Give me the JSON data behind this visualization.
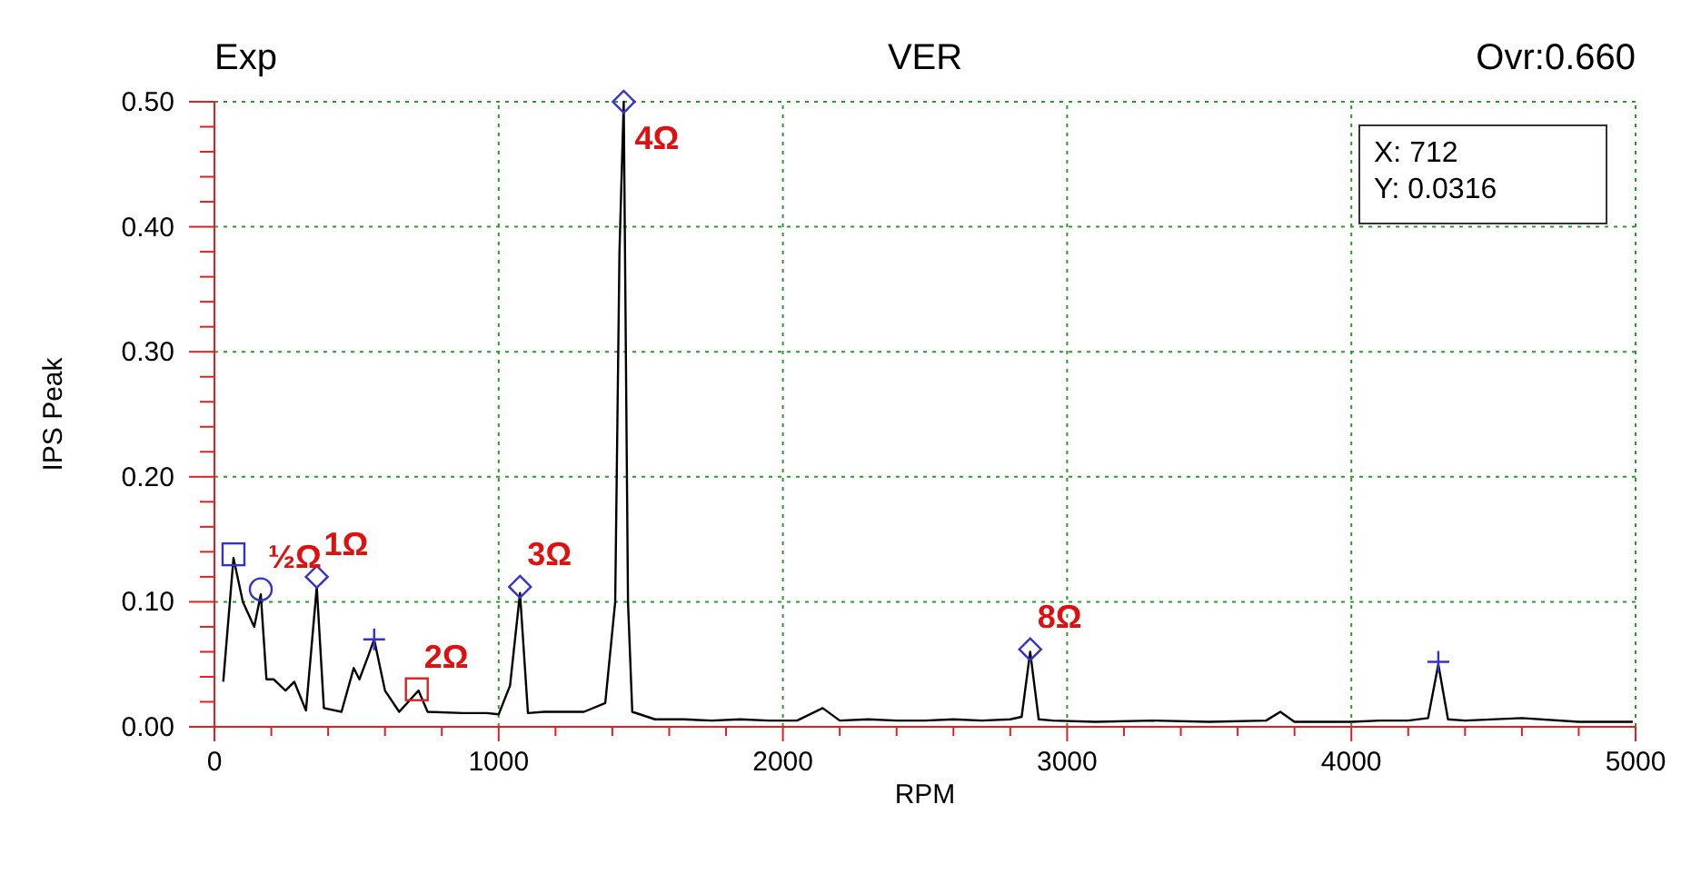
{
  "chart_data": {
    "type": "line",
    "title": "VER",
    "xlabel": "RPM",
    "ylabel": "IPS Peak",
    "xlim": [
      0,
      5000
    ],
    "ylim": [
      0,
      0.5
    ],
    "xticks": [
      0,
      {
        "value": 200,
        "label": null
      },
      {
        "value": 400,
        "label": null
      },
      {
        "value": 600,
        "label": null
      },
      {
        "value": 800,
        "label": null
      },
      1000,
      {
        "value": 1200,
        "label": null
      },
      {
        "value": 1400,
        "label": null
      },
      {
        "value": 1600,
        "label": null
      },
      {
        "value": 1800,
        "label": null
      },
      2000,
      {
        "value": 2200,
        "label": null
      },
      {
        "value": 2400,
        "label": null
      },
      {
        "value": 2600,
        "label": null
      },
      {
        "value": 2800,
        "label": null
      },
      3000,
      {
        "value": 3200,
        "label": null
      },
      {
        "value": 3400,
        "label": null
      },
      {
        "value": 3600,
        "label": null
      },
      {
        "value": 3800,
        "label": null
      },
      4000,
      {
        "value": 4200,
        "label": null
      },
      {
        "value": 4400,
        "label": null
      },
      {
        "value": 4600,
        "label": null
      },
      {
        "value": 4800,
        "label": null
      },
      5000
    ],
    "yticks": [
      {
        "value": 0,
        "label": "0.00"
      },
      {
        "value": 0.02,
        "label": null
      },
      {
        "value": 0.04,
        "label": null
      },
      {
        "value": 0.06,
        "label": null
      },
      {
        "value": 0.08,
        "label": null
      },
      {
        "value": 0.1,
        "label": "0.10"
      },
      {
        "value": 0.12,
        "label": null
      },
      {
        "value": 0.14,
        "label": null
      },
      {
        "value": 0.16,
        "label": null
      },
      {
        "value": 0.18,
        "label": null
      },
      {
        "value": 0.2,
        "label": "0.20"
      },
      {
        "value": 0.22,
        "label": null
      },
      {
        "value": 0.24,
        "label": null
      },
      {
        "value": 0.26,
        "label": null
      },
      {
        "value": 0.28,
        "label": null
      },
      {
        "value": 0.3,
        "label": "0.30"
      },
      {
        "value": 0.32,
        "label": null
      },
      {
        "value": 0.34,
        "label": null
      },
      {
        "value": 0.36,
        "label": null
      },
      {
        "value": 0.38,
        "label": null
      },
      {
        "value": 0.4,
        "label": "0.40"
      },
      {
        "value": 0.42,
        "label": null
      },
      {
        "value": 0.44,
        "label": null
      },
      {
        "value": 0.46,
        "label": null
      },
      {
        "value": 0.48,
        "label": null
      },
      {
        "value": 0.5,
        "label": "0.50"
      }
    ],
    "grid": true,
    "series": [
      {
        "color": "#000000",
        "marker": "none",
        "x": [
          31,
          67,
          100,
          140,
          163,
          183,
          208,
          250,
          281,
          322,
          360,
          385,
          447,
          490,
          510,
          540,
          562,
          600,
          650,
          718,
          750,
          875,
          958,
          1000,
          1040,
          1075,
          1103,
          1160,
          1228,
          1300,
          1375,
          1410,
          1425,
          1440,
          1455,
          1470,
          1550,
          1650,
          1750,
          1850,
          1950,
          2050,
          2140,
          2200,
          2300,
          2400,
          2500,
          2600,
          2700,
          2800,
          2840,
          2870,
          2900,
          2950,
          3100,
          3300,
          3500,
          3700,
          3750,
          3800,
          4000,
          4100,
          4200,
          4270,
          4306,
          4340,
          4400,
          4600,
          4800,
          4990
        ],
        "values": [
          0.036,
          0.135,
          0.1,
          0.08,
          0.106,
          0.038,
          0.038,
          0.029,
          0.036,
          0.013,
          0.112,
          0.015,
          0.012,
          0.047,
          0.038,
          0.056,
          0.07,
          0.029,
          0.012,
          0.029,
          0.012,
          0.011,
          0.011,
          0.01,
          0.033,
          0.107,
          0.011,
          0.012,
          0.012,
          0.012,
          0.019,
          0.1,
          0.38,
          0.5,
          0.1,
          0.012,
          0.006,
          0.006,
          0.005,
          0.006,
          0.005,
          0.005,
          0.015,
          0.005,
          0.006,
          0.005,
          0.005,
          0.006,
          0.005,
          0.006,
          0.008,
          0.06,
          0.006,
          0.005,
          0.004,
          0.005,
          0.004,
          0.005,
          0.012,
          0.004,
          0.004,
          0.005,
          0.005,
          0.007,
          0.05,
          0.006,
          0.005,
          0.007,
          0.004,
          0.004
        ]
      },
      {
        "type": "scatter",
        "color": "#3333cc",
        "marker": "diamond",
        "x": [
          360,
          1075,
          1440,
          2870
        ],
        "values": [
          0.12,
          0.112,
          0.5,
          0.062
        ]
      },
      {
        "type": "scatter",
        "color": "#3333cc",
        "marker": "square",
        "x": [
          67
        ],
        "values": [
          0.138
        ]
      },
      {
        "type": "scatter",
        "color": "#3333cc",
        "marker": "circle",
        "x": [
          163
        ],
        "values": [
          0.11
        ]
      },
      {
        "type": "scatter",
        "color": "#3333cc",
        "marker": "cross",
        "x": [
          562,
          4306
        ],
        "values": [
          0.07,
          0.052
        ]
      },
      {
        "type": "scatter",
        "color": "#e02020",
        "marker": "square",
        "x": [
          712
        ],
        "values": [
          0.03
        ]
      }
    ],
    "annotations": [
      "Exp",
      "Ovr:0.660",
      "X: 712",
      "Y: 0.0316",
      {
        "text": "½Ω",
        "x": 163,
        "y": 0.11
      },
      {
        "text": "1Ω",
        "x": 360,
        "y": 0.12
      },
      {
        "text": "2Ω",
        "x": 712,
        "y": 0.03
      },
      {
        "text": "3Ω",
        "x": 1075,
        "y": 0.112
      },
      {
        "text": "4Ω",
        "x": 1440,
        "y": 0.5
      },
      {
        "text": "8Ω",
        "x": 2870,
        "y": 0.062
      }
    ]
  }
}
